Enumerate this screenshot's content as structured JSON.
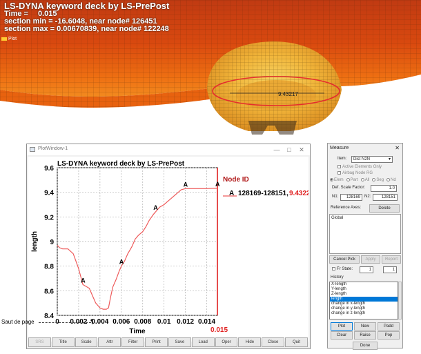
{
  "viewport": {
    "title": "LS-DYNA keyword deck by LS-PrePost",
    "time_label": "Time =",
    "time_value": "0.015",
    "section_min": "section min = -16.6048, near node# 126451",
    "section_max": "section max = 0.00670839, near node# 122248",
    "plot_tag": "Plot",
    "measure_label": "9.43217",
    "colors": {
      "deep": "#c43a10",
      "mid": "#e8620f",
      "hot": "#f39a2a",
      "yellow": "#f7c843",
      "ring": "#e52d2d"
    }
  },
  "plot_window": {
    "title": "PlotWindow-1",
    "controls": {
      "minimize": "—",
      "maximize": "□",
      "close": "✕"
    },
    "toolbar": [
      "SRS",
      "Title",
      "Scale",
      "Attr",
      "Filter",
      "Print",
      "Save",
      "Load",
      "Oper",
      "Hide",
      "Close",
      "Quit"
    ],
    "toolbar_disabled": [
      "SRS"
    ]
  },
  "chart_data": {
    "type": "line",
    "title": "LS-DYNA keyword deck by LS-PrePost",
    "xlabel": "Time",
    "ylabel": "length",
    "xlim": [
      0,
      0.015
    ],
    "ylim": [
      8.4,
      9.6
    ],
    "xticks": [
      "0",
      "0.002",
      "0.004",
      "0.006",
      "0.008",
      "0.01",
      "0.012",
      "0.014"
    ],
    "yticks": [
      "8.4",
      "8.6",
      "8.8",
      "9",
      "9.2",
      "9.4",
      "9.6"
    ],
    "current_x_label": "0.015",
    "legend": {
      "header": "Node ID",
      "entry_marker": "A",
      "entry_text": "128169-128151,",
      "entry_value": "9.4322"
    },
    "grid": true,
    "series": [
      {
        "marker": "A",
        "color": "#ee5a5a",
        "x": [
          0,
          0.0002,
          0.0005,
          0.001,
          0.0015,
          0.002,
          0.0024,
          0.0028,
          0.003,
          0.0033,
          0.0036,
          0.004,
          0.0043,
          0.0046,
          0.0048,
          0.005,
          0.0052,
          0.0055,
          0.0058,
          0.006,
          0.0063,
          0.0066,
          0.007,
          0.0073,
          0.0076,
          0.008,
          0.0083,
          0.0086,
          0.009,
          0.0093,
          0.0096,
          0.01,
          0.0104,
          0.0108,
          0.0112,
          0.0116,
          0.012,
          0.0125,
          0.013,
          0.0135,
          0.014,
          0.0145,
          0.015
        ],
        "y": [
          8.97,
          8.95,
          8.94,
          8.94,
          8.9,
          8.78,
          8.65,
          8.63,
          8.62,
          8.56,
          8.5,
          8.46,
          8.45,
          8.45,
          8.46,
          8.55,
          8.63,
          8.69,
          8.76,
          8.8,
          8.84,
          8.9,
          8.96,
          9.02,
          9.05,
          9.08,
          9.12,
          9.17,
          9.22,
          9.25,
          9.28,
          9.3,
          9.33,
          9.36,
          9.39,
          9.42,
          9.43,
          9.43,
          9.43,
          9.43,
          9.43,
          9.432,
          9.4322
        ],
        "marker_x": [
          0.0024,
          0.006,
          0.0092,
          0.012,
          0.015
        ]
      }
    ]
  },
  "measure": {
    "title": "Measure",
    "close": "✕",
    "item_label": "Item:",
    "item_value": "Dist N2N",
    "active_elements": "Active Elements Only",
    "airbag_rg": "Airbag Node RG",
    "radios": [
      "Elem",
      "Part",
      "All",
      "Seg",
      "Nd"
    ],
    "defl_scale_label": "Def. Scale Factor:",
    "defl_scale_value": "1.0",
    "n1_label": "N1:",
    "n1_value": "128169",
    "n2_label": "N2:",
    "n2_value": "128151",
    "ref_axes_label": "Reference Axes:",
    "delete": "Delete",
    "axes_list": [
      "Global"
    ],
    "cancel_pick": "Cancel Pick",
    "apply": "Apply",
    "report": "Report",
    "fr_state_label": "Fr State:",
    "fr_state_a": "1",
    "fr_state_b": "1",
    "history_label": "History",
    "history_items": [
      "X-length",
      "Y-length",
      "Z-length",
      "length",
      "change in x-length",
      "change in y-length",
      "change in z-length"
    ],
    "history_selected": "length",
    "buttons_row1": [
      "Plot",
      "New",
      "Padd"
    ],
    "buttons_row2": [
      "Clear",
      "Raise",
      "Pop"
    ],
    "done": "Done"
  },
  "page_break": {
    "label": "Saut de page",
    "mark": "¶"
  }
}
